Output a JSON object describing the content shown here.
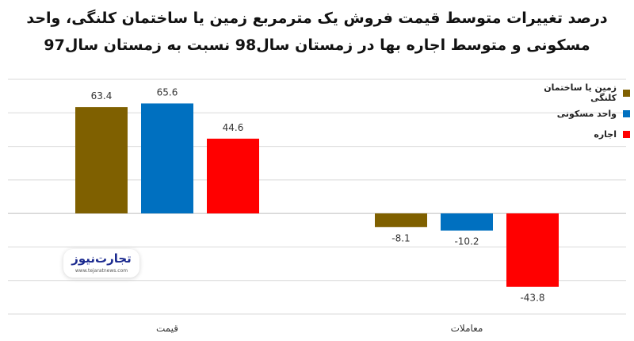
{
  "title": {
    "line1": "درصد تغییرات متوسط قیمت فروش یک مترمربع زمین یا ساختمان کلنگی، واحد",
    "line2": "مسکونی و متوسط اجاره بها در زمستان سال98 نسبت به زمستان سال97"
  },
  "watermark": {
    "name": "تجارت‌نیوز",
    "url": "www.tejaratnews.com"
  },
  "legend": [
    {
      "label": "زمین یا ساختمان کلنگی",
      "color": "#7f6000"
    },
    {
      "label": "واحد مسکونی",
      "color": "#0070c0"
    },
    {
      "label": "اجاره",
      "color": "#ff0000"
    }
  ],
  "chart_data": {
    "type": "bar",
    "categories": [
      "قیمت",
      "معاملات"
    ],
    "series": [
      {
        "name": "زمین یا ساختمان کلنگی",
        "color": "#7f6000",
        "values": [
          63.4,
          -8.1
        ]
      },
      {
        "name": "واحد مسکونی",
        "color": "#0070c0",
        "values": [
          65.6,
          -10.2
        ]
      },
      {
        "name": "اجاره",
        "color": "#ff0000",
        "values": [
          44.6,
          -43.8
        ]
      }
    ],
    "ylim": [
      -60,
      80
    ],
    "grid": true,
    "legend_position": "right"
  }
}
